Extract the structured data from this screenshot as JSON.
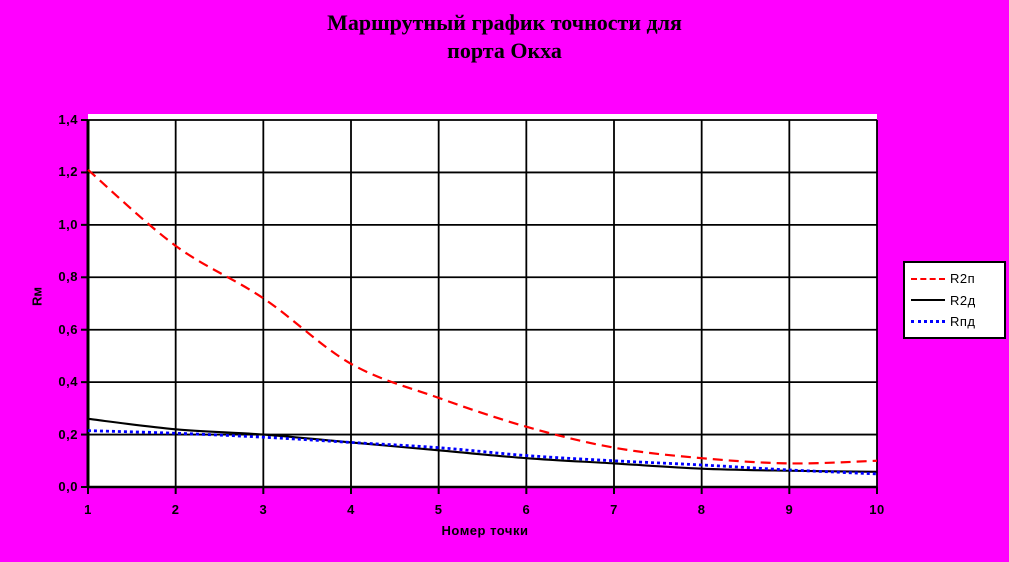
{
  "title": {
    "line1": "Маршрутный график точности для",
    "line2": "порта Окха"
  },
  "colors": {
    "background": "#FF00FF",
    "plot_background": "#FFFFFF",
    "grid": "#000000",
    "series_r2p": "#FF0000",
    "series_r2d": "#000000",
    "series_rpd": "#0000FF"
  },
  "chart_data": {
    "type": "line",
    "title": "Маршрутный график точности для порта Окха",
    "xlabel": "Номер точки",
    "ylabel": "Rм",
    "x": [
      1,
      2,
      3,
      4,
      5,
      6,
      7,
      8,
      9,
      10
    ],
    "x_tick_labels": [
      "1",
      "2",
      "3",
      "4",
      "5",
      "6",
      "7",
      "8",
      "9",
      "10"
    ],
    "y_ticks": [
      0.0,
      0.2,
      0.4,
      0.6,
      0.8,
      1.0,
      1.2,
      1.4
    ],
    "y_tick_labels": [
      "0,0",
      "0,2",
      "0,4",
      "0,6",
      "0,8",
      "1,0",
      "1,2",
      "1,4"
    ],
    "xlim": [
      1,
      10
    ],
    "ylim": [
      0,
      1.4
    ],
    "grid": true,
    "legend_position": "right",
    "series": [
      {
        "name": "R2п",
        "color": "#FF0000",
        "dash": "dashed",
        "values": [
          1.21,
          0.92,
          0.72,
          0.47,
          0.34,
          0.23,
          0.15,
          0.11,
          0.09,
          0.1
        ]
      },
      {
        "name": "R2д",
        "color": "#000000",
        "dash": "solid",
        "values": [
          0.26,
          0.22,
          0.2,
          0.17,
          0.14,
          0.11,
          0.09,
          0.07,
          0.062,
          0.058
        ]
      },
      {
        "name": "Rпд",
        "color": "#0000FF",
        "dash": "dotted",
        "values": [
          0.215,
          0.205,
          0.19,
          0.17,
          0.15,
          0.12,
          0.1,
          0.084,
          0.065,
          0.05
        ]
      }
    ]
  }
}
